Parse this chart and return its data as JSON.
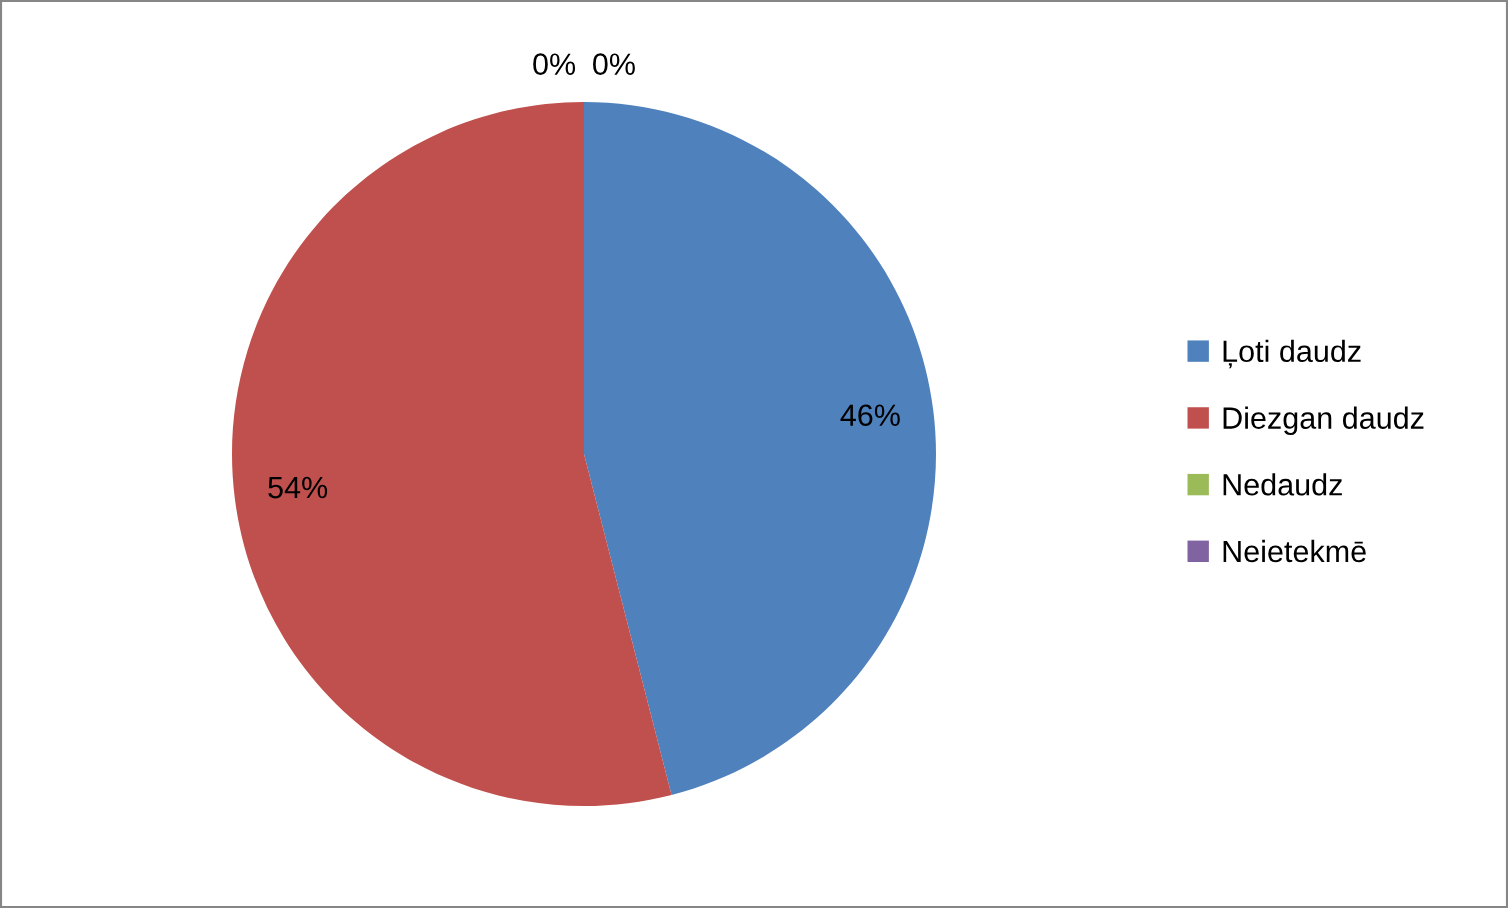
{
  "chart_data": {
    "type": "pie",
    "categories": [
      "Ļoti daudz",
      "Diezgan daudz",
      "Nedaudz",
      "Neietekmē"
    ],
    "values": [
      46,
      54,
      0,
      0
    ],
    "colors": [
      "#4f81bd",
      "#c0504d",
      "#9bbb59",
      "#8064a2"
    ],
    "value_labels": [
      "46%",
      "54%",
      "0%",
      "0%"
    ],
    "legend": "right"
  }
}
